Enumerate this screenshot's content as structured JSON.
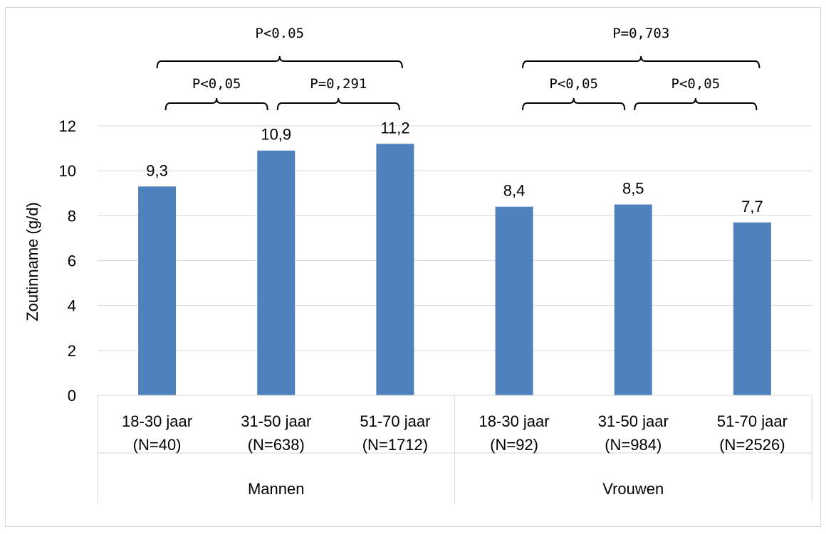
{
  "chart_data": {
    "type": "bar",
    "ylabel": "Zoutinname (g/d)",
    "ylim": [
      0,
      12
    ],
    "yticks": [
      0,
      2,
      4,
      6,
      8,
      10,
      12
    ],
    "grid": true,
    "bar_color": "#4f81bd",
    "categories": [
      {
        "line1": "18-30 jaar",
        "line2": "(N=40)",
        "group": "Mannen"
      },
      {
        "line1": "31-50 jaar",
        "line2": "(N=638)",
        "group": "Mannen"
      },
      {
        "line1": "51-70 jaar",
        "line2": "(N=1712)",
        "group": "Mannen"
      },
      {
        "line1": "18-30 jaar",
        "line2": "(N=92)",
        "group": "Vrouwen"
      },
      {
        "line1": "31-50 jaar",
        "line2": "(N=984)",
        "group": "Vrouwen"
      },
      {
        "line1": "51-70 jaar",
        "line2": "(N=2526)",
        "group": "Vrouwen"
      }
    ],
    "values": [
      9.3,
      10.9,
      11.2,
      8.4,
      8.5,
      7.7
    ],
    "data_labels": [
      "9,3",
      "10,9",
      "11,2",
      "8,4",
      "8,5",
      "7,7"
    ],
    "groups": [
      "Mannen",
      "Vrouwen"
    ],
    "annotations": [
      {
        "text": "P<0,05",
        "from": 0,
        "to": 1,
        "level": 1
      },
      {
        "text": "P=0,291",
        "from": 1,
        "to": 2,
        "level": 1
      },
      {
        "text": "P<0.05",
        "from": 0,
        "to": 2,
        "level": 2
      },
      {
        "text": "P<0,05",
        "from": 3,
        "to": 4,
        "level": 1
      },
      {
        "text": "P<0,05",
        "from": 4,
        "to": 5,
        "level": 1
      },
      {
        "text": "P=0,703",
        "from": 3,
        "to": 5,
        "level": 2
      }
    ]
  }
}
